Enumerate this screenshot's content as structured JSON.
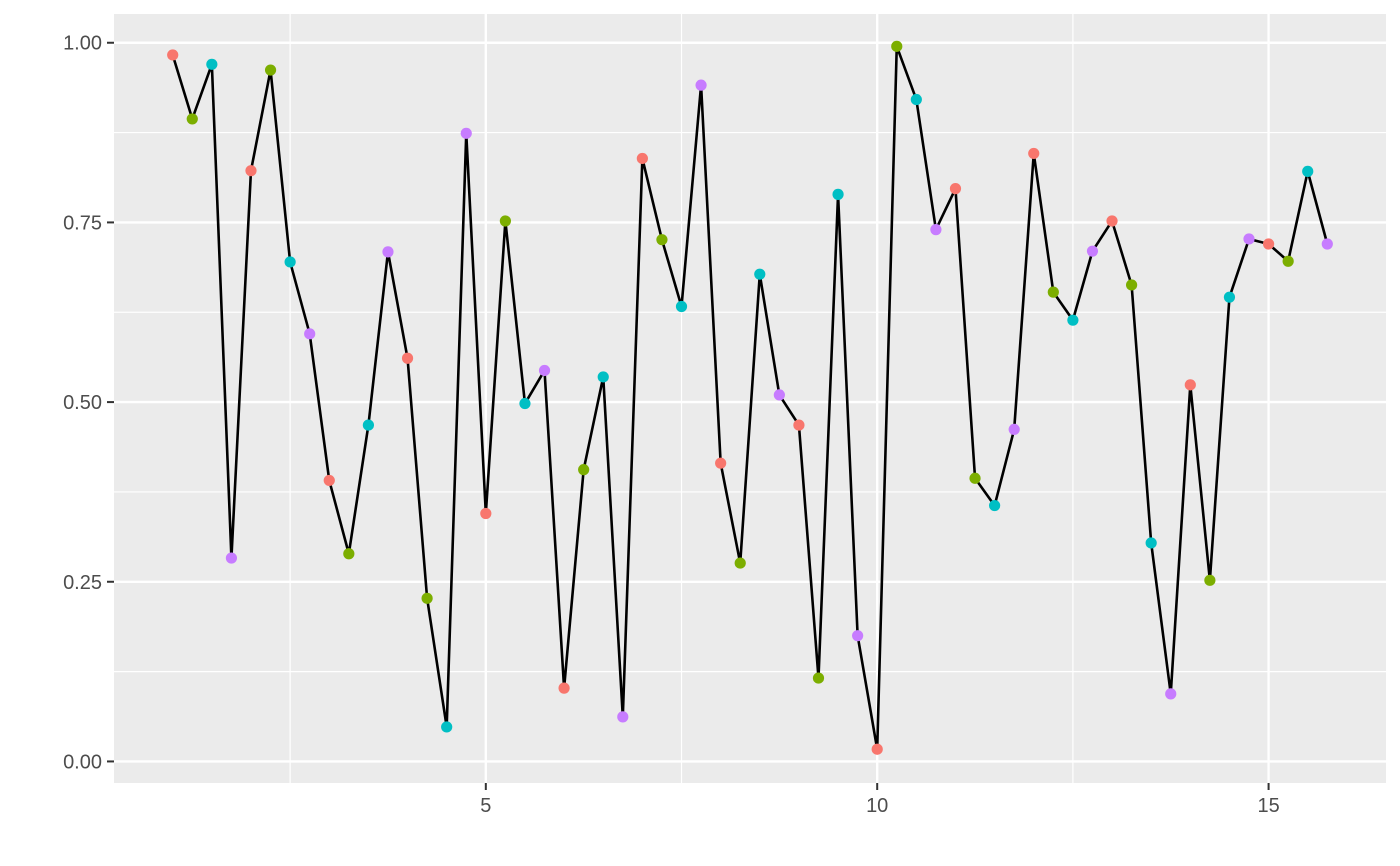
{
  "chart_data": {
    "type": "line",
    "title": "",
    "xlabel": "",
    "ylabel": "",
    "xlim": [
      0.25,
      16.5
    ],
    "ylim": [
      -0.03,
      1.04
    ],
    "x_ticks": [
      5,
      10,
      15
    ],
    "x_tick_labels": [
      "5",
      "10",
      "15"
    ],
    "y_ticks": [
      0,
      0.25,
      0.5,
      0.75,
      1
    ],
    "y_tick_labels": [
      "0.00",
      "0.25",
      "0.50",
      "0.75",
      "1.00"
    ],
    "grid": true,
    "legend": "none",
    "colors": {
      "panel_background": "#ebebeb",
      "grid_line": "#ffffff",
      "line": "#000000",
      "tick_label": "#4d4d4d",
      "point_palette": [
        "#f8766d",
        "#7cae00",
        "#00bfc4",
        "#c77cff"
      ]
    },
    "series": [
      {
        "x": [
          1,
          1.25,
          1.5,
          1.75,
          2,
          2.25,
          2.5,
          2.75,
          3,
          3.25,
          3.5,
          3.75,
          4,
          4.25,
          4.5,
          4.75,
          5,
          5.25,
          5.5,
          5.75,
          6,
          6.25,
          6.5,
          6.75,
          7,
          7.25,
          7.5,
          7.75,
          8,
          8.25,
          8.5,
          8.75,
          9,
          9.25,
          9.5,
          9.75,
          10,
          10.25,
          10.5,
          10.75,
          11,
          11.25,
          11.5,
          11.75,
          12,
          12.25,
          12.5,
          12.75,
          13,
          13.25,
          13.5,
          13.75,
          14,
          14.25,
          14.5,
          14.75,
          15,
          15.25,
          15.5,
          15.75
        ],
        "y": [
          0.983,
          0.894,
          0.97,
          0.283,
          0.822,
          0.962,
          0.695,
          0.595,
          0.391,
          0.289,
          0.468,
          0.709,
          0.561,
          0.227,
          0.048,
          0.874,
          0.345,
          0.752,
          0.498,
          0.544,
          0.102,
          0.406,
          0.535,
          0.062,
          0.839,
          0.726,
          0.633,
          0.941,
          0.415,
          0.276,
          0.678,
          0.51,
          0.468,
          0.116,
          0.789,
          0.175,
          0.017,
          0.995,
          0.921,
          0.74,
          0.797,
          0.394,
          0.356,
          0.462,
          0.846,
          0.653,
          0.614,
          0.71,
          0.752,
          0.663,
          0.304,
          0.094,
          0.524,
          0.252,
          0.646,
          0.727,
          0.72,
          0.696,
          0.821,
          0.72
        ],
        "point_colors": [
          "#f8766d",
          "#7cae00",
          "#00bfc4",
          "#c77cff",
          "#f8766d",
          "#7cae00",
          "#00bfc4",
          "#c77cff",
          "#f8766d",
          "#7cae00",
          "#00bfc4",
          "#c77cff",
          "#f8766d",
          "#7cae00",
          "#00bfc4",
          "#c77cff",
          "#f8766d",
          "#7cae00",
          "#00bfc4",
          "#c77cff",
          "#f8766d",
          "#7cae00",
          "#00bfc4",
          "#c77cff",
          "#f8766d",
          "#7cae00",
          "#00bfc4",
          "#c77cff",
          "#f8766d",
          "#7cae00",
          "#00bfc4",
          "#c77cff",
          "#f8766d",
          "#7cae00",
          "#00bfc4",
          "#c77cff",
          "#f8766d",
          "#7cae00",
          "#00bfc4",
          "#c77cff",
          "#f8766d",
          "#7cae00",
          "#00bfc4",
          "#c77cff",
          "#f8766d",
          "#7cae00",
          "#00bfc4",
          "#c77cff",
          "#f8766d",
          "#7cae00",
          "#00bfc4",
          "#c77cff",
          "#f8766d",
          "#7cae00",
          "#00bfc4",
          "#c77cff",
          "#f8766d",
          "#7cae00",
          "#00bfc4",
          "#c77cff"
        ]
      }
    ]
  }
}
